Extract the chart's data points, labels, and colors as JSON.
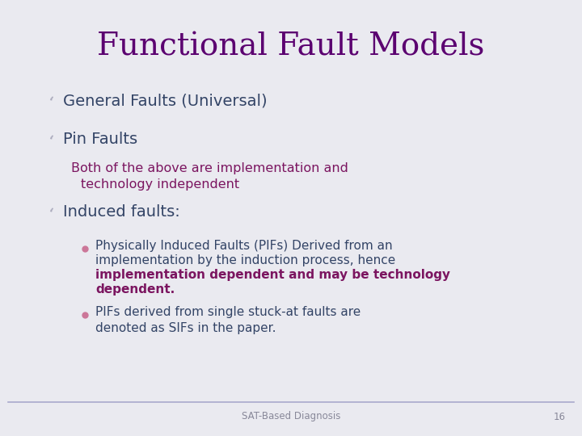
{
  "title": "Functional Fault Models",
  "title_color": "#5B0070",
  "title_fontsize": 28,
  "background_color": "#EAEAF0",
  "bullet_color": "#AAAABC",
  "dot_color": "#CC7799",
  "text_color_main": "#334466",
  "text_color_sub": "#7B1560",
  "text_color_bold": "#7B1560",
  "footer_text": "SAT-Based Diagnosis",
  "footer_page": "16",
  "footer_color": "#888899"
}
